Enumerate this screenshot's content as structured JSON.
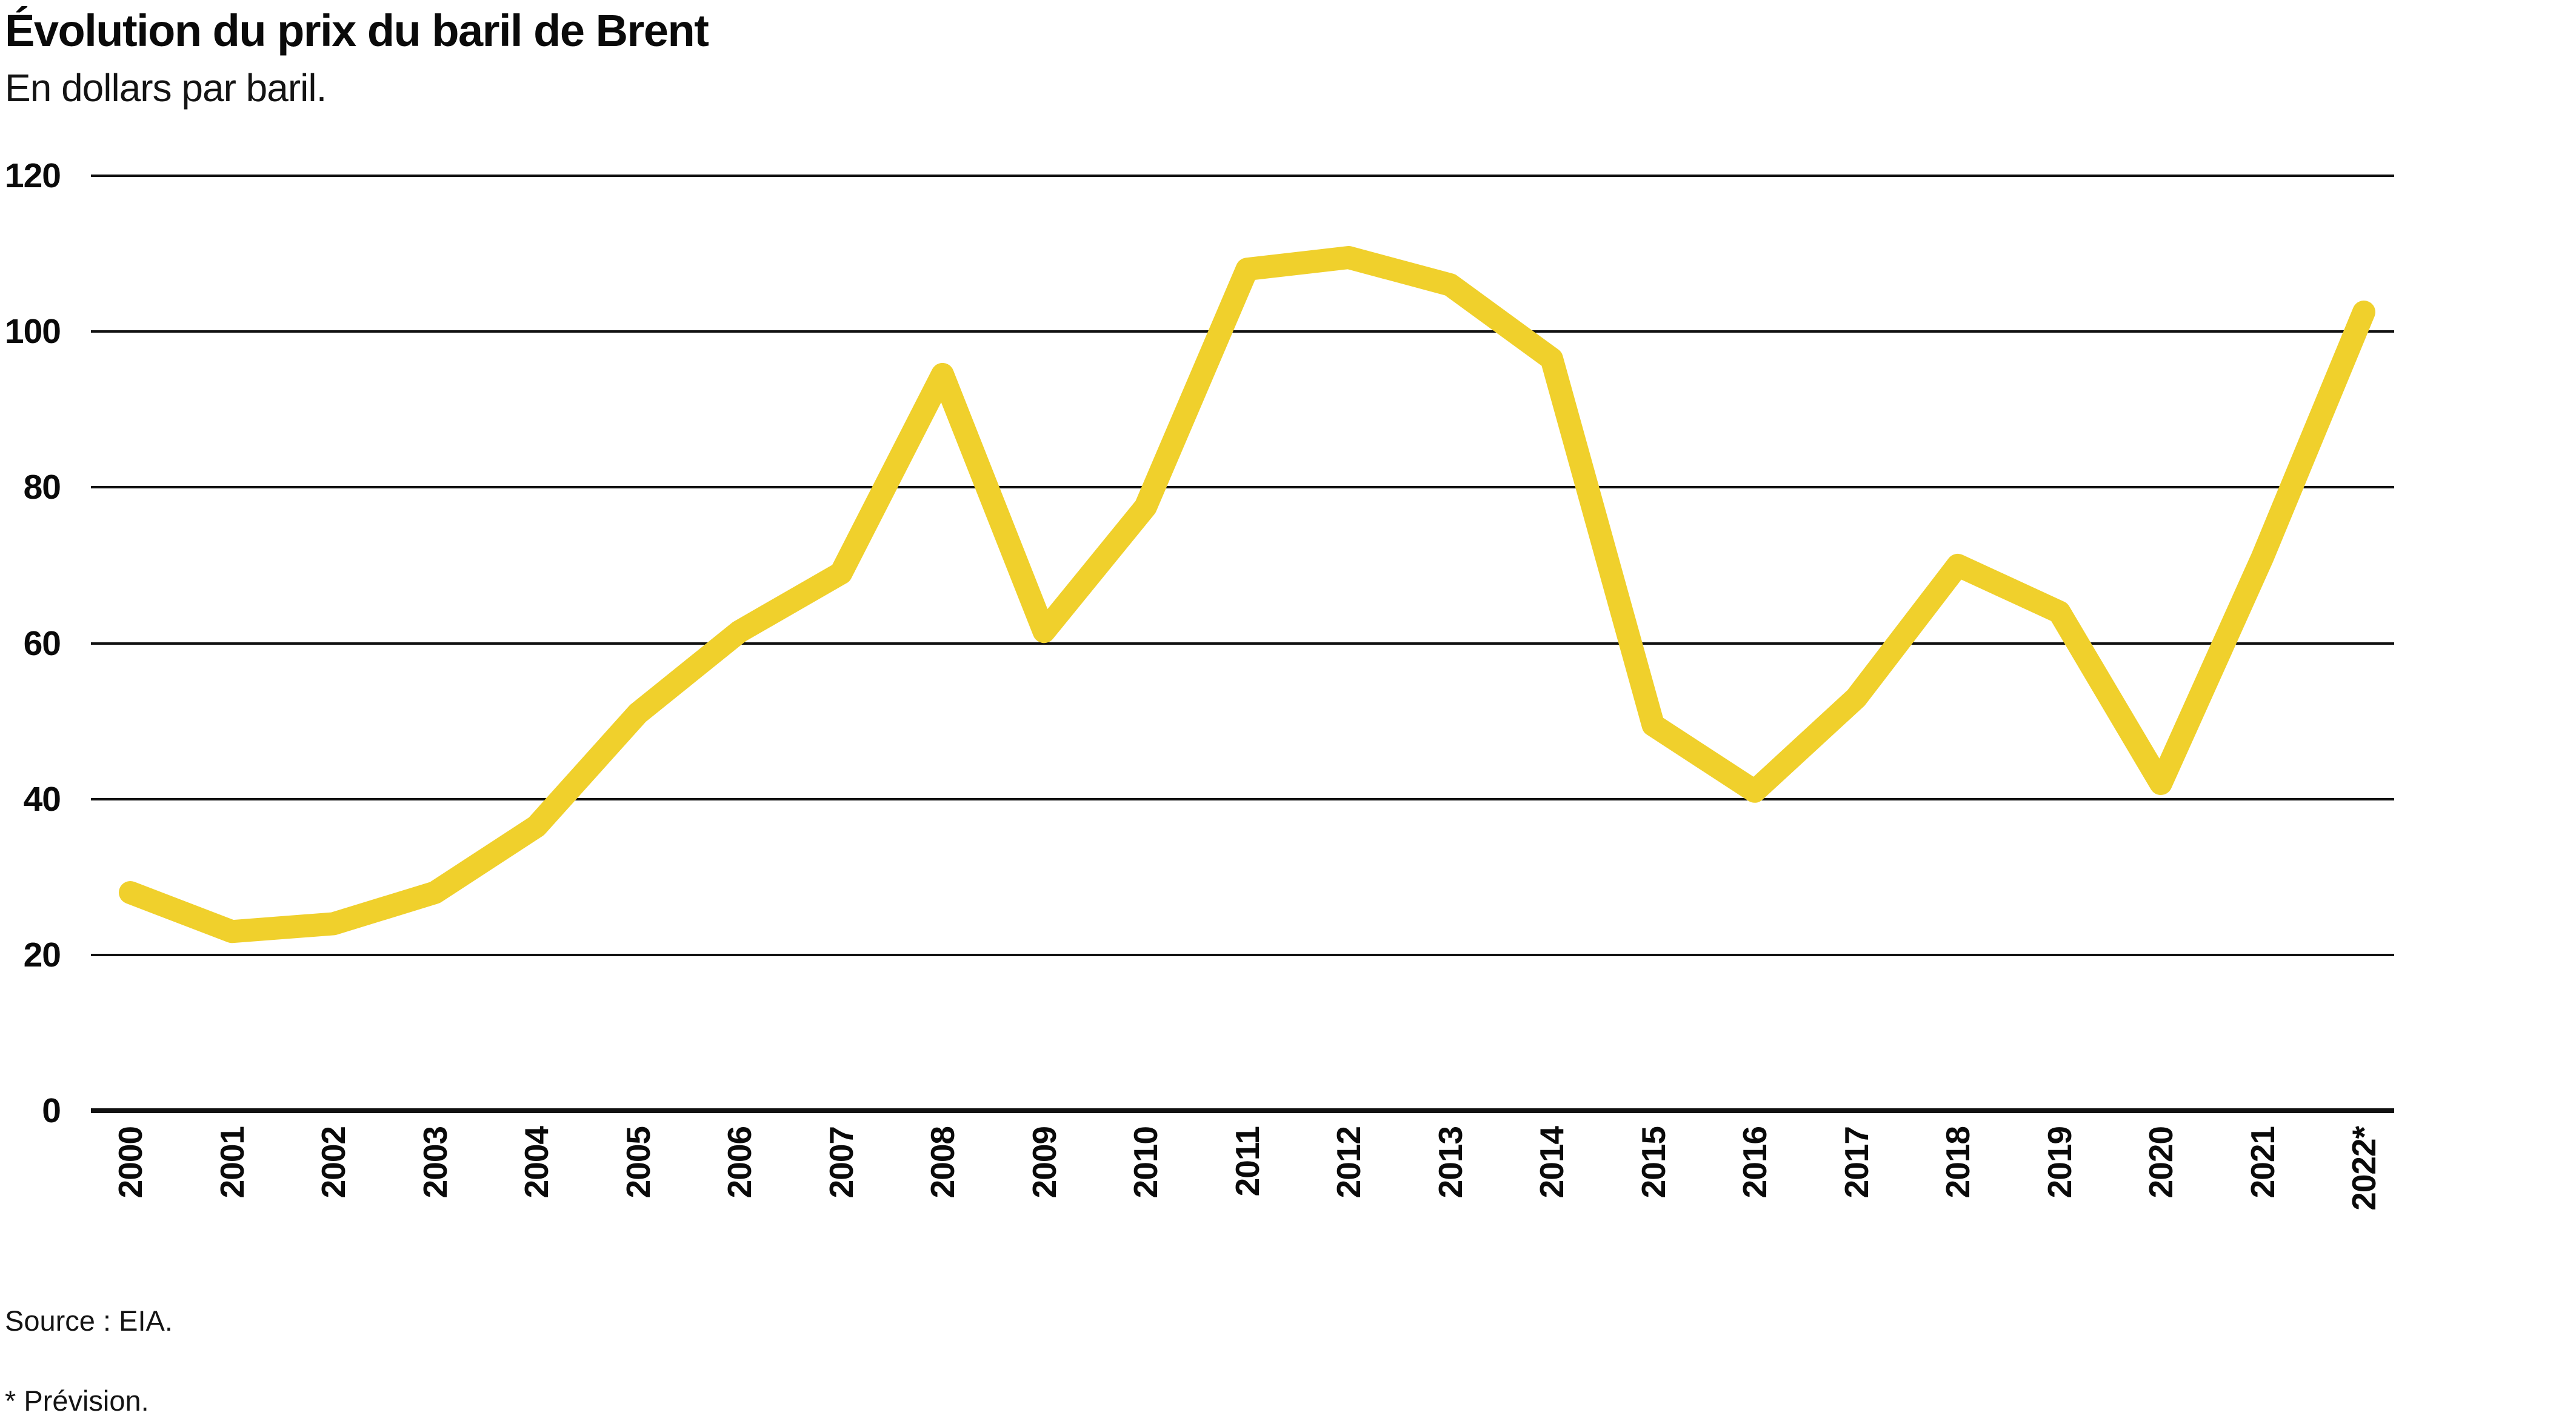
{
  "header": {
    "title": "Évolution du prix du baril de Brent",
    "subtitle": "En dollars par baril."
  },
  "footer": {
    "source": "Source : EIA.",
    "note": "* Prévision."
  },
  "chart_data": {
    "type": "line",
    "title": "Évolution du prix du baril de Brent",
    "subtitle": "En dollars par baril.",
    "unit": "dollars par baril",
    "categories": [
      "2000",
      "2001",
      "2002",
      "2003",
      "2004",
      "2005",
      "2006",
      "2007",
      "2008",
      "2009",
      "2010",
      "2011",
      "2012",
      "2013",
      "2014",
      "2015",
      "2016",
      "2017",
      "2018",
      "2019",
      "2020",
      "2021",
      "2022*"
    ],
    "series": [
      {
        "name": "Prix du baril de Brent",
        "values": [
          28,
          23,
          24,
          28,
          36.5,
          51,
          61.5,
          69,
          94.5,
          61.5,
          77.5,
          108,
          109.5,
          106,
          96.5,
          49.5,
          41,
          53,
          70,
          64,
          42,
          71,
          102.5
        ]
      }
    ],
    "ylim": [
      0,
      120
    ],
    "yticks": [
      0,
      20,
      40,
      60,
      80,
      100,
      120
    ],
    "xlabel": "",
    "ylabel": "",
    "grid": "horizontal",
    "legend": "none",
    "line_color": "#F0D02C",
    "grid_color": "#111111"
  }
}
